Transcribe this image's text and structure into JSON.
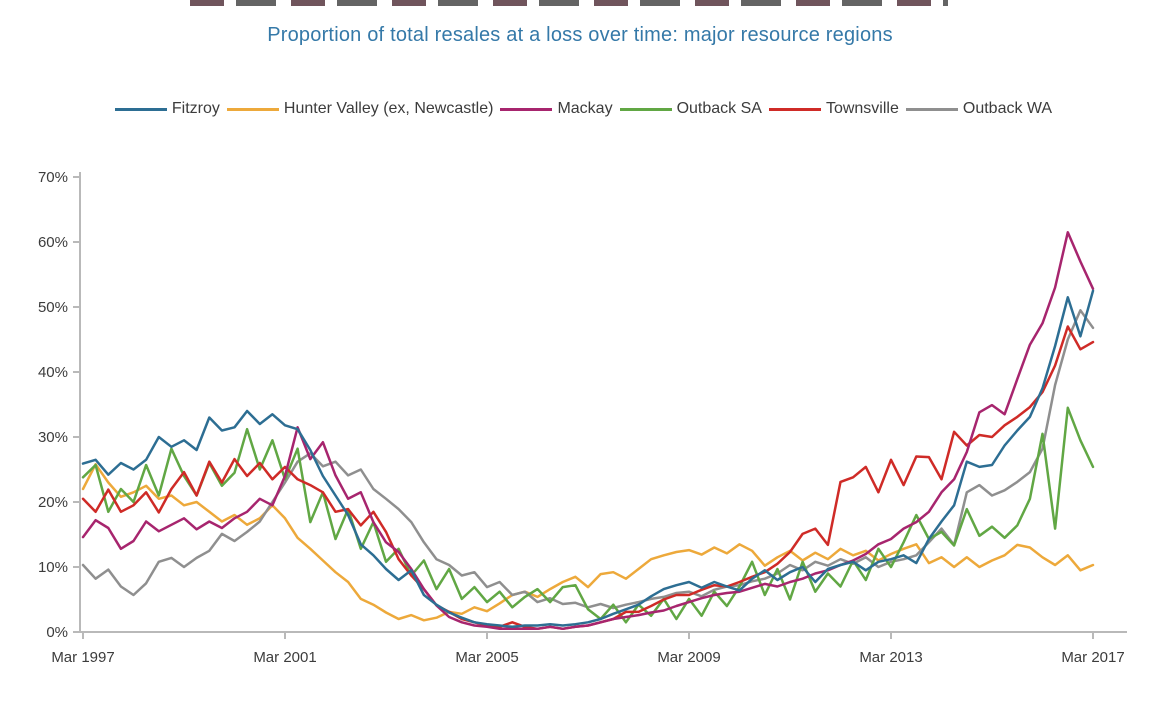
{
  "title": {
    "text": "Proportion of total resales at a loss over time: major resource regions",
    "color": "#3579a8"
  },
  "chart_data": {
    "type": "line",
    "title": "Proportion of total resales at a loss over time: major resource regions",
    "legend_position": "top",
    "grid": false,
    "axis_color": "#b9b9b9",
    "label_color": "#3c3c3c",
    "x_axis": {
      "start": "Mar 1997",
      "end": "Mar 2017",
      "frequency": "quarterly",
      "tick_labels": [
        "Mar 1997",
        "Mar 2001",
        "Mar 2005",
        "Mar 2009",
        "Mar 2013",
        "Mar 2017"
      ]
    },
    "y_axis": {
      "min": 0,
      "max": 70,
      "unit": "%",
      "tick_labels": [
        "0%",
        "10%",
        "20%",
        "30%",
        "40%",
        "50%",
        "60%",
        "70%"
      ]
    },
    "series": [
      {
        "name": "Fitzroy",
        "color": "#2d6e93",
        "values": [
          25.9,
          26.5,
          24.2,
          26.0,
          25.0,
          26.5,
          30.0,
          28.5,
          29.5,
          28.0,
          33.0,
          31.0,
          31.5,
          34.0,
          32.0,
          33.5,
          31.8,
          31.2,
          28.0,
          24.0,
          21.0,
          18.0,
          13.5,
          11.8,
          9.7,
          8.0,
          9.5,
          5.7,
          4.2,
          3.0,
          2.2,
          1.5,
          1.2,
          1.0,
          0.8,
          1.0,
          1.0,
          1.2,
          1.0,
          1.2,
          1.5,
          2.0,
          2.8,
          3.5,
          4.2,
          5.5,
          6.6,
          7.2,
          7.7,
          6.8,
          7.7,
          7.0,
          6.4,
          8.2,
          9.5,
          8.0,
          9.2,
          10.0,
          7.7,
          9.7,
          10.3,
          10.8,
          9.5,
          10.8,
          11.2,
          11.8,
          10.6,
          14.3,
          17.0,
          19.5,
          26.2,
          25.4,
          25.7,
          28.7,
          31.0,
          33.1,
          37.5,
          44.0,
          51.5,
          45.5,
          52.5
        ]
      },
      {
        "name": "Hunter Valley (ex, Newcastle)",
        "color": "#eda93b",
        "values": [
          22.0,
          25.8,
          23.0,
          20.8,
          21.5,
          22.5,
          20.5,
          21.0,
          19.5,
          20.0,
          18.5,
          17.0,
          18.0,
          16.5,
          17.5,
          19.5,
          17.5,
          14.5,
          12.8,
          11.0,
          9.2,
          7.7,
          5.1,
          4.2,
          3.0,
          2.0,
          2.6,
          1.8,
          2.2,
          3.1,
          2.8,
          3.8,
          3.2,
          4.4,
          5.7,
          6.2,
          5.4,
          6.6,
          7.7,
          8.5,
          6.9,
          8.9,
          9.2,
          8.2,
          9.7,
          11.2,
          11.8,
          12.3,
          12.6,
          11.9,
          13.0,
          12.1,
          13.5,
          12.5,
          10.2,
          11.5,
          12.5,
          11.0,
          12.2,
          11.2,
          12.8,
          11.8,
          12.5,
          11.0,
          12.0,
          12.8,
          13.5,
          10.6,
          11.5,
          10.0,
          11.5,
          10.0,
          11.0,
          11.8,
          13.4,
          13.0,
          11.5,
          10.3,
          11.8,
          9.5,
          10.3
        ]
      },
      {
        "name": "Mackay",
        "color": "#a7256e",
        "values": [
          14.6,
          17.2,
          16.0,
          12.8,
          14.0,
          17.0,
          15.5,
          16.5,
          17.5,
          15.8,
          17.0,
          16.0,
          17.5,
          18.5,
          20.5,
          19.5,
          24.0,
          31.5,
          26.6,
          29.2,
          24.1,
          20.5,
          21.5,
          16.9,
          13.8,
          12.3,
          9.7,
          6.6,
          4.1,
          2.3,
          1.5,
          1.0,
          0.8,
          0.5,
          0.5,
          0.5,
          0.5,
          0.8,
          0.5,
          0.8,
          1.0,
          1.5,
          2.0,
          2.3,
          2.6,
          3.0,
          3.3,
          4.0,
          4.6,
          5.2,
          5.7,
          6.0,
          6.2,
          6.8,
          7.4,
          7.0,
          7.7,
          8.2,
          9.0,
          9.5,
          10.3,
          11.0,
          12.0,
          13.5,
          14.3,
          15.9,
          16.9,
          18.5,
          21.5,
          23.5,
          27.7,
          33.8,
          34.9,
          33.5,
          38.9,
          44.2,
          47.5,
          53.0,
          61.5,
          57.0,
          52.8
        ]
      },
      {
        "name": "Outback SA",
        "color": "#61a744",
        "values": [
          23.8,
          25.7,
          18.5,
          22.0,
          20.0,
          25.7,
          21.0,
          28.2,
          24.0,
          21.0,
          26.0,
          22.5,
          24.5,
          31.2,
          25.0,
          29.5,
          23.5,
          28.2,
          16.9,
          21.5,
          14.3,
          18.9,
          12.8,
          16.9,
          10.8,
          12.8,
          8.7,
          11.0,
          6.6,
          9.7,
          5.1,
          6.9,
          4.6,
          6.2,
          3.8,
          5.4,
          6.6,
          4.6,
          6.9,
          7.2,
          3.5,
          2.0,
          4.2,
          1.5,
          4.2,
          2.5,
          5.1,
          2.0,
          5.1,
          2.5,
          6.2,
          4.0,
          7.0,
          10.8,
          5.7,
          9.7,
          5.0,
          10.8,
          6.2,
          9.0,
          7.0,
          11.0,
          8.0,
          12.8,
          10.0,
          13.8,
          18.0,
          14.3,
          15.4,
          13.3,
          18.9,
          14.8,
          16.2,
          14.5,
          16.4,
          20.5,
          30.5,
          15.9,
          34.5,
          29.5,
          25.4
        ]
      },
      {
        "name": "Townsville",
        "color": "#cf2b27",
        "values": [
          20.5,
          18.5,
          21.9,
          18.5,
          19.5,
          21.5,
          18.4,
          22.0,
          24.6,
          21.0,
          26.2,
          23.0,
          26.6,
          24.0,
          26.0,
          23.5,
          25.4,
          23.5,
          22.6,
          21.5,
          18.5,
          18.9,
          16.4,
          18.5,
          15.4,
          11.2,
          8.7,
          6.6,
          4.1,
          3.1,
          2.0,
          1.5,
          1.0,
          0.8,
          1.5,
          0.8,
          0.5,
          0.8,
          0.5,
          0.8,
          1.0,
          1.5,
          2.0,
          3.1,
          3.1,
          4.0,
          5.0,
          5.7,
          5.7,
          6.5,
          7.2,
          7.0,
          7.7,
          8.5,
          9.2,
          10.5,
          12.3,
          15.1,
          15.9,
          13.4,
          23.1,
          23.8,
          25.4,
          21.5,
          26.5,
          22.6,
          27.0,
          26.9,
          23.5,
          30.8,
          28.7,
          30.3,
          30.0,
          31.8,
          33.1,
          34.6,
          36.9,
          41.0,
          47.0,
          43.5,
          44.6
        ]
      },
      {
        "name": "Outback WA",
        "color": "#8f8f8f",
        "values": [
          10.3,
          8.2,
          9.6,
          7.0,
          5.7,
          7.5,
          10.8,
          11.4,
          10.0,
          11.4,
          12.5,
          15.1,
          14.0,
          15.4,
          17.0,
          20.0,
          23.0,
          26.2,
          27.5,
          25.5,
          26.2,
          24.1,
          25.0,
          22.0,
          20.5,
          18.9,
          16.9,
          13.8,
          11.2,
          10.3,
          8.7,
          9.2,
          6.9,
          7.7,
          5.7,
          6.2,
          4.6,
          5.2,
          4.3,
          4.5,
          3.8,
          4.3,
          3.7,
          4.2,
          4.6,
          5.1,
          5.4,
          6.0,
          6.2,
          5.5,
          6.5,
          7.0,
          7.2,
          7.8,
          8.2,
          9.0,
          10.3,
          9.5,
          10.8,
          10.2,
          11.2,
          10.5,
          11.5,
          10.0,
          10.8,
          11.2,
          11.8,
          13.8,
          15.9,
          13.4,
          21.5,
          22.6,
          21.0,
          21.8,
          23.1,
          24.6,
          28.2,
          38.0,
          45.0,
          49.5,
          46.8
        ]
      }
    ]
  }
}
